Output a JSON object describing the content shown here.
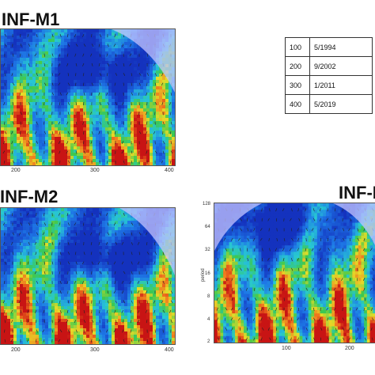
{
  "titles": {
    "m1": "INF-M1",
    "m2": "INF-M2",
    "m3": "INF-M"
  },
  "legend_table": {
    "rows": [
      {
        "index": "100",
        "date": "5/1994"
      },
      {
        "index": "200",
        "date": "9/2002"
      },
      {
        "index": "300",
        "date": "1/2011"
      },
      {
        "index": "400",
        "date": "5/2019"
      }
    ]
  },
  "chart_data": [
    {
      "type": "heatmap",
      "title": "INF-M1",
      "x_ticks": [
        "200",
        "300",
        "400"
      ],
      "y_ticks": [],
      "colors": {
        "low": "#1a3fd0",
        "mid": "#22c55e",
        "high": "#dc2626",
        "coi_shade": "#b8b8ff"
      }
    },
    {
      "type": "heatmap",
      "title": "INF-M2",
      "x_ticks": [
        "200",
        "300",
        "400"
      ],
      "y_ticks": [],
      "colors": {
        "low": "#1a3fd0",
        "mid": "#22c55e",
        "high": "#dc2626",
        "coi_shade": "#b8b8ff"
      }
    },
    {
      "type": "heatmap",
      "title": "INF-M",
      "x_ticks": [
        "100",
        "200"
      ],
      "y_ticks": [
        "128",
        "64",
        "32",
        "16",
        "8",
        "4",
        "2"
      ],
      "ylabel": "period",
      "colors": {
        "low": "#1a3fd0",
        "mid": "#22c55e",
        "high": "#dc2626",
        "coi_shade": "#b8b8ff"
      }
    }
  ]
}
